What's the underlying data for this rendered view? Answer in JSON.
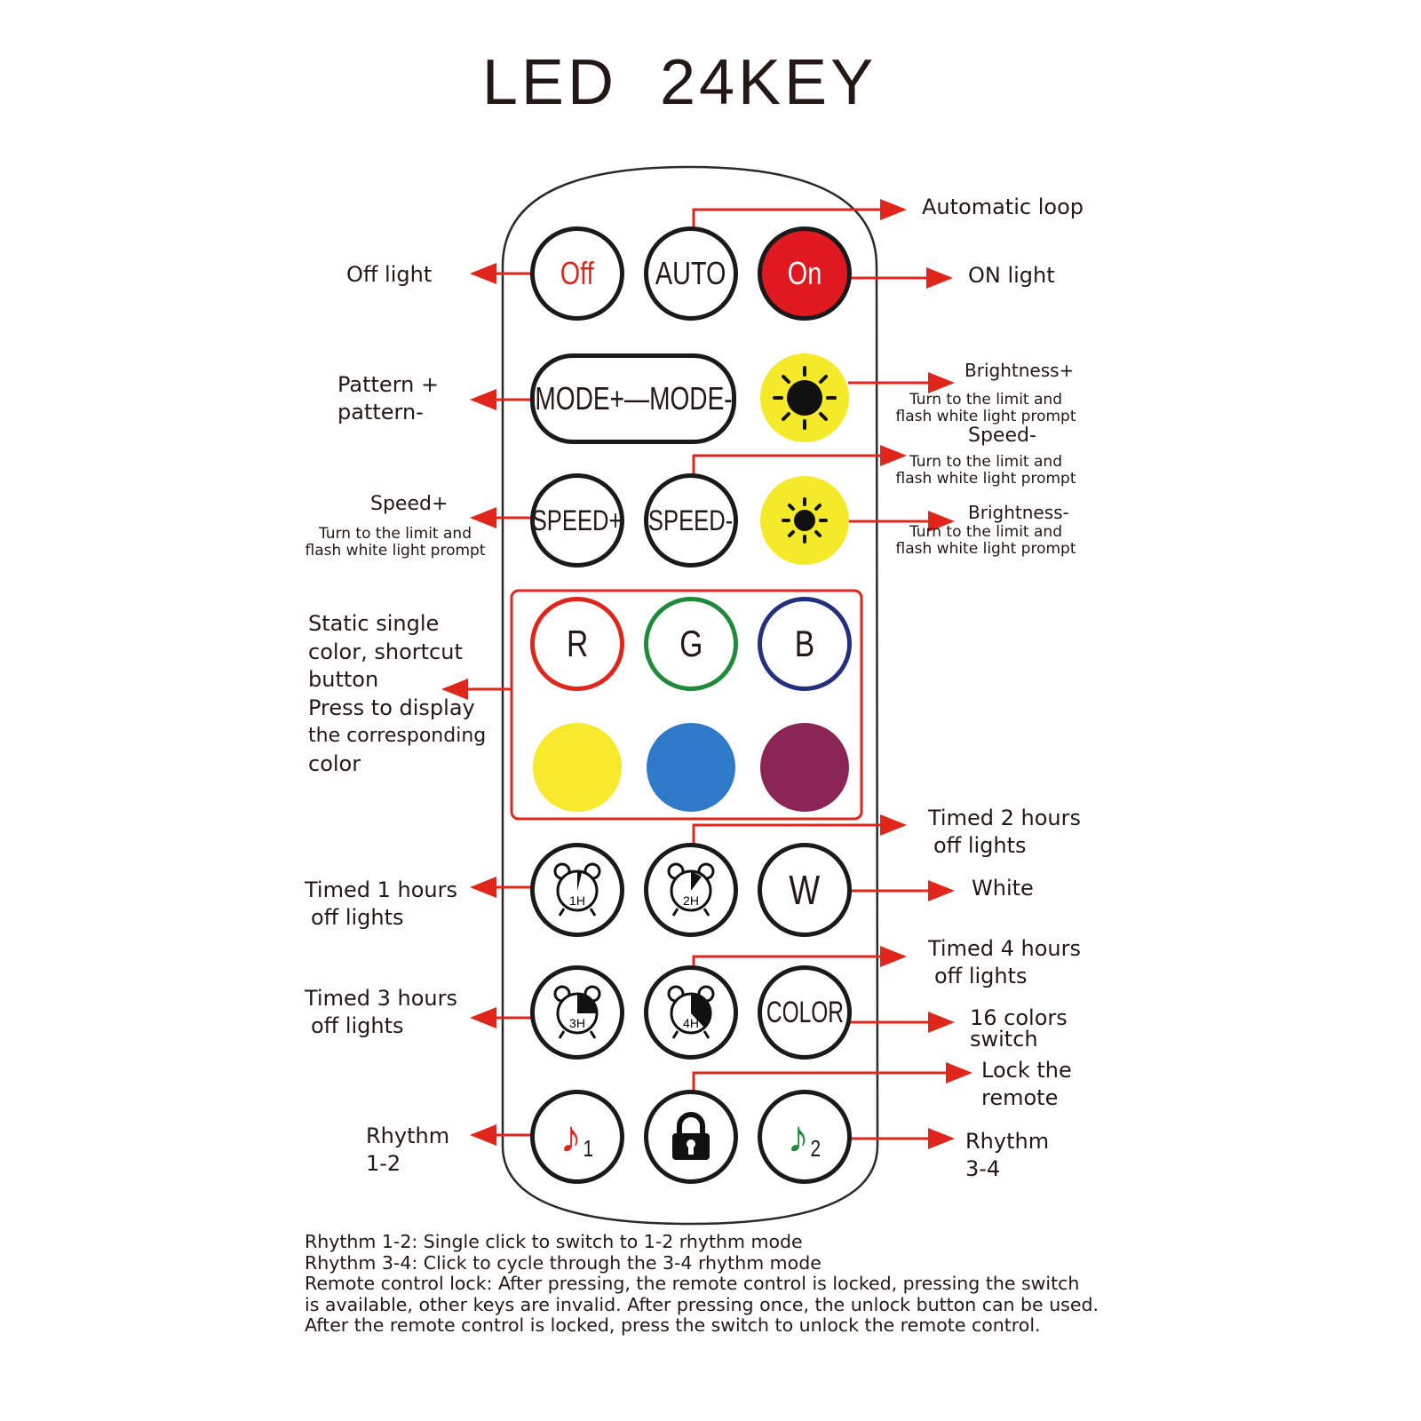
{
  "title": "LED  24KEY",
  "keys": {
    "off": "Off",
    "auto": "AUTO",
    "on": "On",
    "mode": "MODE+—MODE-",
    "speed_plus": "SPEED+",
    "speed_minus": "SPEED-",
    "r": "R",
    "g": "G",
    "b": "B",
    "timer_1h": "1H",
    "timer_2h": "2H",
    "timer_3h": "3H",
    "timer_4h": "4H",
    "w": "W",
    "color": "COLOR",
    "rhythm_1": "1",
    "rhythm_2": "2"
  },
  "colors": {
    "accent": "#e0261b",
    "on_button": "#e0181f",
    "sun": "#f5ea2a",
    "yellow": "#f7ea2d",
    "blue": "#2e7ac8",
    "purple": "#8a2556",
    "note_red": "#e0261b",
    "note_green": "#1e8a3a"
  },
  "icons": [
    "sun-icon",
    "alarm-clock-icon",
    "lock-icon",
    "music-note-icon"
  ],
  "labels": {
    "automatic_loop": "Automatic loop",
    "off_light": "Off light",
    "on_light": "ON light",
    "pattern": [
      "Pattern +",
      "pattern-"
    ],
    "brightness_plus": "Brightness+",
    "limit_note": [
      "Turn to the limit and",
      "flash white light prompt"
    ],
    "speed_minus": "Speed-",
    "speed_plus": "Speed+",
    "brightness_minus": "Brightness-",
    "static_color": [
      "Static single",
      "color, shortcut",
      "button",
      "Press to display",
      "the corresponding",
      "color"
    ],
    "timed_2": [
      "Timed 2 hours",
      "off lights"
    ],
    "timed_1": [
      "Timed 1 hours",
      "off lights"
    ],
    "white": "White",
    "timed_4": [
      "Timed 4 hours",
      "off lights"
    ],
    "timed_3": [
      "Timed 3 hours",
      "off lights"
    ],
    "colors_16": [
      "16 colors",
      "switch"
    ],
    "lock": [
      "Lock the",
      "remote"
    ],
    "rhythm_12": [
      "Rhythm",
      "1-2"
    ],
    "rhythm_34": [
      "Rhythm",
      "3-4"
    ]
  },
  "footer": [
    "Rhythm 1-2: Single click to switch to 1-2 rhythm mode",
    "Rhythm 3-4: Click to cycle through the 3-4 rhythm mode",
    "Remote control lock: After pressing, the remote control is locked, pressing the switch",
    "is available, other keys are invalid. After pressing once, the unlock button can be used.",
    "After the remote control is locked, press the switch to unlock the remote control."
  ]
}
